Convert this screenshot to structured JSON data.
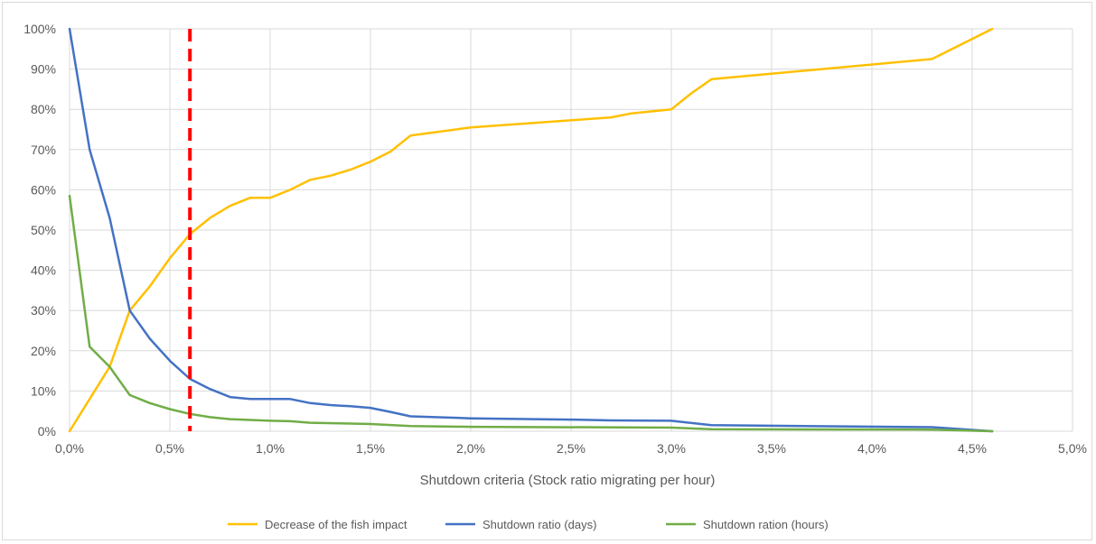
{
  "chart_data": {
    "type": "line",
    "xlabel": "Shutdown criteria (Stock ratio migrating per hour)",
    "ylabel": "",
    "xlim": [
      0,
      5
    ],
    "ylim": [
      0,
      100
    ],
    "grid": true,
    "legend_position": "bottom",
    "x_ticks": [
      "0,0%",
      "0,5%",
      "1,0%",
      "1,5%",
      "2,0%",
      "2,5%",
      "3,0%",
      "3,5%",
      "4,0%",
      "4,5%",
      "5,0%"
    ],
    "x_tick_values": [
      0,
      0.5,
      1,
      1.5,
      2,
      2.5,
      3,
      3.5,
      4,
      4.5,
      5
    ],
    "y_ticks": [
      "0%",
      "10%",
      "20%",
      "30%",
      "40%",
      "50%",
      "60%",
      "70%",
      "80%",
      "90%",
      "100%"
    ],
    "y_tick_values": [
      0,
      10,
      20,
      30,
      40,
      50,
      60,
      70,
      80,
      90,
      100
    ],
    "threshold_line": {
      "x": 0.6,
      "color": "#ff0000",
      "style": "dashed"
    },
    "series": [
      {
        "name": "Decrease of the fish impact",
        "color": "#ffc000",
        "points": [
          [
            0,
            0
          ],
          [
            0.1,
            8
          ],
          [
            0.2,
            16
          ],
          [
            0.3,
            30
          ],
          [
            0.4,
            36
          ],
          [
            0.5,
            43
          ],
          [
            0.6,
            49
          ],
          [
            0.7,
            53
          ],
          [
            0.8,
            56
          ],
          [
            0.9,
            58
          ],
          [
            1.0,
            58
          ],
          [
            1.1,
            60
          ],
          [
            1.2,
            62.5
          ],
          [
            1.3,
            63.5
          ],
          [
            1.4,
            65
          ],
          [
            1.5,
            67
          ],
          [
            1.6,
            69.5
          ],
          [
            1.7,
            73.5
          ],
          [
            2.0,
            75.5
          ],
          [
            2.7,
            78
          ],
          [
            2.8,
            79
          ],
          [
            3.0,
            80
          ],
          [
            3.1,
            84
          ],
          [
            3.2,
            87.5
          ],
          [
            4.3,
            92.5
          ],
          [
            4.6,
            100
          ]
        ]
      },
      {
        "name": "Shutdown ratio (days)",
        "color": "#4472c4",
        "points": [
          [
            0,
            100
          ],
          [
            0.1,
            70
          ],
          [
            0.2,
            53
          ],
          [
            0.3,
            30
          ],
          [
            0.4,
            23
          ],
          [
            0.5,
            17.5
          ],
          [
            0.6,
            13
          ],
          [
            0.7,
            10.5
          ],
          [
            0.8,
            8.5
          ],
          [
            0.9,
            8
          ],
          [
            1.0,
            8
          ],
          [
            1.1,
            8
          ],
          [
            1.2,
            7
          ],
          [
            1.3,
            6.5
          ],
          [
            1.4,
            6.2
          ],
          [
            1.5,
            5.8
          ],
          [
            1.6,
            4.8
          ],
          [
            1.7,
            3.7
          ],
          [
            2.0,
            3.2
          ],
          [
            2.5,
            2.9
          ],
          [
            2.7,
            2.7
          ],
          [
            3.0,
            2.6
          ],
          [
            3.2,
            1.5
          ],
          [
            4.3,
            1.0
          ],
          [
            4.6,
            0
          ]
        ]
      },
      {
        "name": "Shutdown ration (hours)",
        "color": "#70ad47",
        "points": [
          [
            0,
            58.5
          ],
          [
            0.1,
            21
          ],
          [
            0.2,
            16
          ],
          [
            0.3,
            9
          ],
          [
            0.4,
            7
          ],
          [
            0.5,
            5.5
          ],
          [
            0.6,
            4.3
          ],
          [
            0.7,
            3.5
          ],
          [
            0.8,
            3.0
          ],
          [
            0.9,
            2.8
          ],
          [
            1.0,
            2.6
          ],
          [
            1.1,
            2.5
          ],
          [
            1.2,
            2.1
          ],
          [
            1.4,
            1.9
          ],
          [
            1.5,
            1.8
          ],
          [
            1.7,
            1.3
          ],
          [
            2.0,
            1.1
          ],
          [
            3.0,
            0.9
          ],
          [
            3.2,
            0.5
          ],
          [
            4.3,
            0.4
          ],
          [
            4.6,
            0
          ]
        ]
      }
    ]
  }
}
